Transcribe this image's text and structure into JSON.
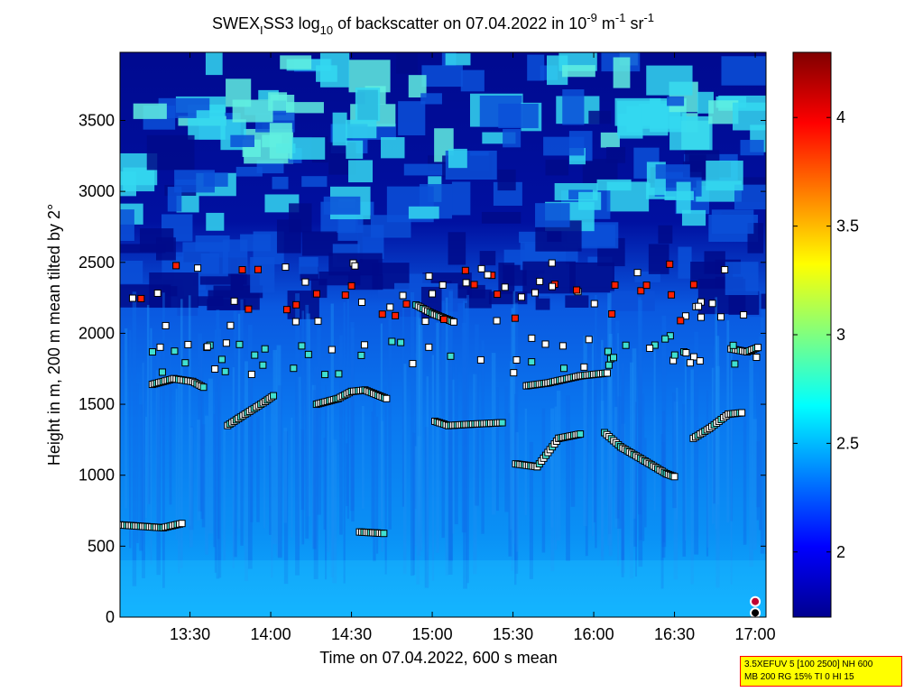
{
  "chart_data": {
    "type": "heatmap",
    "title": {
      "prefix": "SWEX",
      "sub_i": "I",
      "mid": "SS3 log",
      "sub_10": "10",
      "mid2": " of backscatter on 07.04.2022 in 10",
      "sup_exp1": "-9",
      "unit_m": " m",
      "sup_exp2": "-1",
      "unit_sr": " sr",
      "sup_exp3": "-1"
    },
    "xlabel": "Time on 07.04.2022, 600 s mean",
    "ylabel": "Height in m, 200 m mean tilted by 2°",
    "x_range": [
      "13:04",
      "17:04"
    ],
    "x_ticks": [
      "13:30",
      "14:00",
      "14:30",
      "15:00",
      "15:30",
      "16:00",
      "16:30",
      "17:00"
    ],
    "y_range": [
      0,
      3980
    ],
    "y_ticks": [
      0,
      500,
      1000,
      1500,
      2000,
      2500,
      3000,
      3500
    ],
    "colorbar": {
      "range": [
        1.7,
        4.3
      ],
      "ticks": [
        2,
        2.5,
        3,
        3.5,
        4
      ],
      "colormap": "jet"
    },
    "grid": false,
    "layers": [
      {
        "name": "",
        "description_values": {
          "base_near_ground": 2.55,
          "mid_layer_max_height_m": 2300,
          "upper_patches_max_height_m": 3980
        }
      },
      {
        "name": "",
        "description_values": {
          "upper_patches_value": 2.8,
          "clear_air_value": 1.75
        }
      }
    ],
    "layer_heights_series": [
      {
        "name": "",
        "points": [
          {
            "time": "13:04",
            "y": 650
          },
          {
            "time": "13:20",
            "y": 630
          },
          {
            "time": "13:27",
            "y": 660
          }
        ]
      },
      {
        "name": "",
        "points": [
          {
            "time": "13:16",
            "y": 1640
          },
          {
            "time": "13:24",
            "y": 1680
          },
          {
            "time": "13:31",
            "y": 1660
          },
          {
            "time": "13:35",
            "y": 1620
          }
        ]
      },
      {
        "name": "",
        "points": [
          {
            "time": "13:44",
            "y": 1350
          },
          {
            "time": "13:48",
            "y": 1400
          },
          {
            "time": "13:58",
            "y": 1520
          },
          {
            "time": "14:01",
            "y": 1560
          }
        ]
      },
      {
        "name": "",
        "points": [
          {
            "time": "14:17",
            "y": 1500
          },
          {
            "time": "14:25",
            "y": 1540
          },
          {
            "time": "14:30",
            "y": 1590
          },
          {
            "time": "14:35",
            "y": 1600
          },
          {
            "time": "14:43",
            "y": 1540
          }
        ]
      },
      {
        "name": "",
        "points": [
          {
            "time": "14:33",
            "y": 600
          },
          {
            "time": "14:42",
            "y": 590
          }
        ]
      },
      {
        "name": "",
        "points": [
          {
            "time": "15:01",
            "y": 1380
          },
          {
            "time": "15:06",
            "y": 1350
          },
          {
            "time": "15:15",
            "y": 1360
          },
          {
            "time": "15:26",
            "y": 1370
          }
        ]
      },
      {
        "name": "",
        "points": [
          {
            "time": "14:54",
            "y": 2200
          },
          {
            "time": "15:00",
            "y": 2140
          },
          {
            "time": "15:08",
            "y": 2080
          }
        ]
      },
      {
        "name": "",
        "points": [
          {
            "time": "15:35",
            "y": 1630
          },
          {
            "time": "15:43",
            "y": 1650
          },
          {
            "time": "15:55",
            "y": 1700
          },
          {
            "time": "16:05",
            "y": 1720
          }
        ]
      },
      {
        "name": "",
        "points": [
          {
            "time": "15:31",
            "y": 1080
          },
          {
            "time": "15:39",
            "y": 1060
          },
          {
            "time": "15:47",
            "y": 1260
          },
          {
            "time": "15:55",
            "y": 1290
          }
        ]
      },
      {
        "name": "",
        "points": [
          {
            "time": "16:04",
            "y": 1300
          },
          {
            "time": "16:10",
            "y": 1200
          },
          {
            "time": "16:19",
            "y": 1100
          },
          {
            "time": "16:27",
            "y": 1010
          },
          {
            "time": "16:30",
            "y": 990
          }
        ]
      },
      {
        "name": "",
        "points": [
          {
            "time": "16:37",
            "y": 1260
          },
          {
            "time": "16:43",
            "y": 1330
          },
          {
            "time": "16:50",
            "y": 1430
          },
          {
            "time": "16:55",
            "y": 1440
          }
        ]
      },
      {
        "name": "",
        "points": [
          {
            "time": "16:51",
            "y": 1890
          },
          {
            "time": "16:57",
            "y": 1870
          },
          {
            "time": "17:01",
            "y": 1900
          }
        ]
      }
    ]
  },
  "info_box": {
    "line1": "3.5XEFUV 5 [100 2500] NH 600",
    "line2": "MB 200 RG 15% TI 0 HI 15"
  },
  "colors": {
    "background": "#ffffff",
    "info_box_fill": "#ffff00",
    "info_box_border": "#ff0000",
    "marker_white": "#ffffff",
    "marker_cyan": "#40e0d0",
    "marker_red": "#ff2000"
  }
}
